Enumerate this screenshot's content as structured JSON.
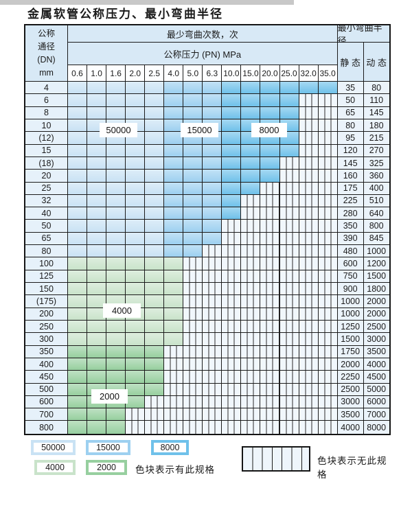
{
  "title": "金属软管公称压力、最小弯曲半径",
  "table": {
    "corner_lines": [
      "公称",
      "通径",
      "(DN)",
      "mm"
    ],
    "bend_cycles_header": "最少弯曲次数，次",
    "pressure_header": "公称压力 (PN) MPa",
    "radius_header": "最小弯曲半径",
    "static_header": "静 态",
    "dynamic_header": "动 态",
    "pressure_columns": [
      "0.6",
      "1.0",
      "1.6",
      "2.0",
      "2.5",
      "4.0",
      "5.0",
      "6.3",
      "10.0",
      "15.0",
      "20.0",
      "25.0",
      "32.0",
      "35.0"
    ],
    "rows": [
      {
        "dn": "4",
        "band": "blue",
        "max_col": 13,
        "static": "35",
        "dynamic": "80"
      },
      {
        "dn": "6",
        "band": "blue",
        "max_col": 11,
        "static": "50",
        "dynamic": "110"
      },
      {
        "dn": "8",
        "band": "blue",
        "max_col": 11,
        "static": "65",
        "dynamic": "145"
      },
      {
        "dn": "10",
        "band": "blue",
        "max_col": 11,
        "static": "80",
        "dynamic": "180"
      },
      {
        "dn": "(12)",
        "band": "blue",
        "max_col": 11,
        "static": "95",
        "dynamic": "215"
      },
      {
        "dn": "15",
        "band": "blue",
        "max_col": 11,
        "static": "120",
        "dynamic": "270"
      },
      {
        "dn": "(18)",
        "band": "blue",
        "max_col": 10,
        "static": "145",
        "dynamic": "325"
      },
      {
        "dn": "20",
        "band": "blue",
        "max_col": 10,
        "static": "160",
        "dynamic": "360"
      },
      {
        "dn": "25",
        "band": "blue",
        "max_col": 9,
        "static": "175",
        "dynamic": "400"
      },
      {
        "dn": "32",
        "band": "blue",
        "max_col": 8,
        "static": "225",
        "dynamic": "510"
      },
      {
        "dn": "40",
        "band": "blue",
        "max_col": 8,
        "static": "280",
        "dynamic": "640"
      },
      {
        "dn": "50",
        "band": "blue",
        "max_col": 7,
        "static": "350",
        "dynamic": "800"
      },
      {
        "dn": "65",
        "band": "blue",
        "max_col": 7,
        "static": "390",
        "dynamic": "845"
      },
      {
        "dn": "80",
        "band": "blue",
        "max_col": 6,
        "static": "480",
        "dynamic": "1000"
      },
      {
        "dn": "100",
        "band": "4000",
        "max_col": 5,
        "static": "600",
        "dynamic": "1200"
      },
      {
        "dn": "125",
        "band": "4000",
        "max_col": 5,
        "static": "750",
        "dynamic": "1500"
      },
      {
        "dn": "150",
        "band": "4000",
        "max_col": 5,
        "static": "900",
        "dynamic": "1800"
      },
      {
        "dn": "(175)",
        "band": "4000",
        "max_col": 5,
        "static": "1000",
        "dynamic": "2000"
      },
      {
        "dn": "200",
        "band": "4000",
        "max_col": 5,
        "static": "1000",
        "dynamic": "2000"
      },
      {
        "dn": "250",
        "band": "4000",
        "max_col": 5,
        "static": "1250",
        "dynamic": "2500"
      },
      {
        "dn": "300",
        "band": "4000",
        "max_col": 5,
        "static": "1500",
        "dynamic": "3000"
      },
      {
        "dn": "350",
        "band": "2000",
        "max_col": 4,
        "static": "1750",
        "dynamic": "3500"
      },
      {
        "dn": "400",
        "band": "2000",
        "max_col": 4,
        "static": "2000",
        "dynamic": "4000"
      },
      {
        "dn": "450",
        "band": "2000",
        "max_col": 4,
        "static": "2250",
        "dynamic": "4500"
      },
      {
        "dn": "500",
        "band": "2000",
        "max_col": 4,
        "static": "2500",
        "dynamic": "5000"
      },
      {
        "dn": "600",
        "band": "2000",
        "max_col": 3,
        "static": "3000",
        "dynamic": "6000"
      },
      {
        "dn": "700",
        "band": "2000",
        "max_col": 2,
        "static": "3500",
        "dynamic": "7000"
      },
      {
        "dn": "800",
        "band": "2000",
        "max_col": 2,
        "static": "4000",
        "dynamic": "8000"
      }
    ],
    "blue_zone_columns": {
      "50000": [
        "0.6",
        "2.5"
      ],
      "15000": [
        "4.0",
        "6.3"
      ],
      "8000": [
        "10.0",
        "35.0"
      ]
    }
  },
  "zone_colors": {
    "z50000": "#c9e2f4",
    "z15000": "#9dd0f0",
    "z8000": "#6fc1ea",
    "z4000": "#c9e3ca",
    "z2000": "#97cf9f"
  },
  "cycle_labels": [
    "50000",
    "15000",
    "8000",
    "4000",
    "2000"
  ],
  "legend": {
    "swatches": [
      {
        "label": "50000",
        "zone": "z50000"
      },
      {
        "label": "15000",
        "zone": "z15000"
      },
      {
        "label": "8000",
        "zone": "z8000"
      },
      {
        "label": "4000",
        "zone": "z4000"
      },
      {
        "label": "2000",
        "zone": "z2000"
      }
    ],
    "has_spec_text": "色块表示有此规格",
    "no_spec_text": "色块表示无此规格"
  }
}
